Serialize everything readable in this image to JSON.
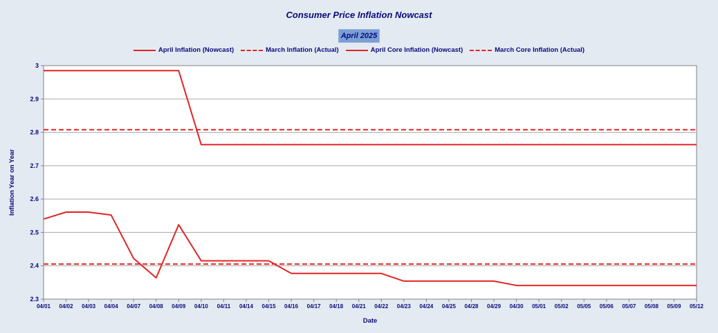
{
  "chart_data": {
    "type": "line",
    "title": "Consumer Price Inflation Nowcast",
    "subtitle": "April 2025",
    "xlabel": "Date",
    "ylabel": "Inflation Year on Year",
    "ylim": [
      2.3,
      3.0
    ],
    "yticks": [
      "2.3",
      "2.4",
      "2.5",
      "2.6",
      "2.7",
      "2.8",
      "2.9",
      "3"
    ],
    "grid": true,
    "legend": "top",
    "categories": [
      "04/01",
      "04/02",
      "04/03",
      "04/04",
      "04/07",
      "04/08",
      "04/09",
      "04/10",
      "04/11",
      "04/14",
      "04/15",
      "04/16",
      "04/17",
      "04/18",
      "04/21",
      "04/22",
      "04/23",
      "04/24",
      "04/25",
      "04/28",
      "04/29",
      "04/30",
      "05/01",
      "05/02",
      "05/05",
      "05/06",
      "05/07",
      "05/08",
      "05/09",
      "05/12"
    ],
    "series": [
      {
        "name": "April Inflation (Nowcast)",
        "style": "solid",
        "color": "#e02424",
        "values": [
          2.985,
          2.985,
          2.985,
          2.985,
          2.985,
          2.985,
          2.985,
          2.763,
          2.763,
          2.763,
          2.763,
          2.763,
          2.763,
          2.763,
          2.763,
          2.763,
          2.763,
          2.763,
          2.763,
          2.763,
          2.763,
          2.763,
          2.763,
          2.763,
          2.763,
          2.763,
          2.763,
          2.763,
          2.763,
          2.763
        ]
      },
      {
        "name": "March Inflation (Actual)",
        "style": "dashed",
        "color": "#e02424",
        "values": [
          2.808,
          2.808,
          2.808,
          2.808,
          2.808,
          2.808,
          2.808,
          2.808,
          2.808,
          2.808,
          2.808,
          2.808,
          2.808,
          2.808,
          2.808,
          2.808,
          2.808,
          2.808,
          2.808,
          2.808,
          2.808,
          2.808,
          2.808,
          2.808,
          2.808,
          2.808,
          2.808,
          2.808,
          2.808,
          2.808
        ]
      },
      {
        "name": "April Core Inflation (Nowcast)",
        "style": "solid",
        "color": "#e02424",
        "values": [
          2.54,
          2.561,
          2.561,
          2.552,
          2.422,
          2.364,
          2.523,
          2.415,
          2.415,
          2.415,
          2.415,
          2.377,
          2.377,
          2.377,
          2.377,
          2.377,
          2.354,
          2.354,
          2.354,
          2.354,
          2.354,
          2.341,
          2.341,
          2.341,
          2.341,
          2.341,
          2.341,
          2.341,
          2.341,
          2.341
        ]
      },
      {
        "name": "March Core Inflation (Actual)",
        "style": "dashed",
        "color": "#e02424",
        "values": [
          2.405,
          2.405,
          2.405,
          2.405,
          2.405,
          2.405,
          2.405,
          2.405,
          2.405,
          2.405,
          2.405,
          2.405,
          2.405,
          2.405,
          2.405,
          2.405,
          2.405,
          2.405,
          2.405,
          2.405,
          2.405,
          2.405,
          2.405,
          2.405,
          2.405,
          2.405,
          2.405,
          2.405,
          2.405,
          2.405
        ]
      }
    ]
  }
}
